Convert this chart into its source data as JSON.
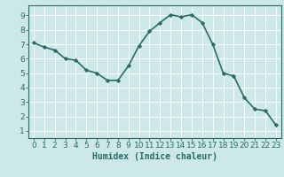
{
  "x": [
    0,
    1,
    2,
    3,
    4,
    5,
    6,
    7,
    8,
    9,
    10,
    11,
    12,
    13,
    14,
    15,
    16,
    17,
    18,
    19,
    20,
    21,
    22,
    23
  ],
  "y": [
    7.1,
    6.8,
    6.6,
    6.0,
    5.9,
    5.2,
    5.0,
    4.5,
    4.5,
    5.5,
    6.9,
    7.9,
    8.5,
    9.05,
    8.9,
    9.05,
    8.5,
    7.0,
    5.0,
    4.8,
    3.3,
    2.5,
    2.4,
    1.4
  ],
  "line_color": "#2a6b65",
  "marker": "D",
  "marker_size": 2.2,
  "bg_color": "#cce8e8",
  "grid_color": "#ffffff",
  "xlabel": "Humidex (Indice chaleur)",
  "xlim": [
    -0.5,
    23.5
  ],
  "ylim": [
    0.5,
    9.7
  ],
  "xticks": [
    0,
    1,
    2,
    3,
    4,
    5,
    6,
    7,
    8,
    9,
    10,
    11,
    12,
    13,
    14,
    15,
    16,
    17,
    18,
    19,
    20,
    21,
    22,
    23
  ],
  "yticks": [
    1,
    2,
    3,
    4,
    5,
    6,
    7,
    8,
    9
  ],
  "xlabel_fontsize": 7,
  "tick_fontsize": 6.5,
  "line_width": 1.2
}
